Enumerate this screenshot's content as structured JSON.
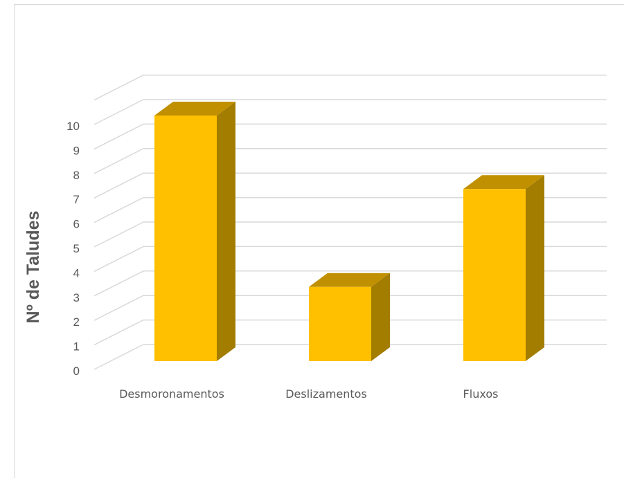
{
  "chart_data": {
    "type": "bar",
    "style": "3d-column",
    "categories": [
      "Desmoronamentos",
      "Deslizamentos",
      "Fluxos"
    ],
    "values": [
      10,
      3,
      7
    ],
    "title": "",
    "xlabel": "",
    "ylabel": "Nº de Taludes",
    "ylim": [
      0,
      10
    ],
    "yticks": [
      "0",
      "1",
      "2",
      "3",
      "4",
      "5",
      "6",
      "7",
      "8",
      "9",
      "10"
    ],
    "grid": true,
    "legend": "none",
    "colors": {
      "front": "#FFC000",
      "top": "#C09000",
      "side": "#A27D00",
      "grid": "#D9D9D9"
    }
  }
}
